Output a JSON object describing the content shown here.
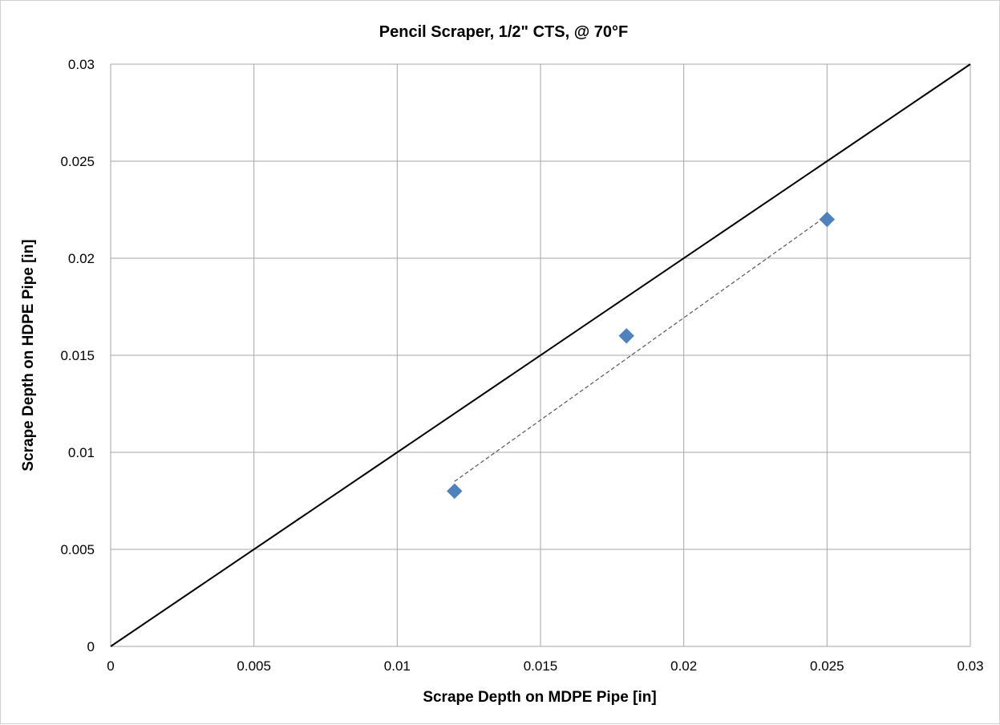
{
  "chart_data": {
    "type": "scatter",
    "title": "Pencil Scraper, 1/2\" CTS, @ 70°F",
    "xlabel": "Scrape Depth on MDPE Pipe [in]",
    "ylabel": "Scrape Depth on HDPE Pipe [in]",
    "xlim": [
      0,
      0.03
    ],
    "ylim": [
      0,
      0.03
    ],
    "x_ticks": [
      "0",
      "0.005",
      "0.01",
      "0.015",
      "0.02",
      "0.025",
      "0.03"
    ],
    "y_ticks": [
      "0",
      "0.005",
      "0.01",
      "0.015",
      "0.02",
      "0.025",
      "0.03"
    ],
    "grid": true,
    "legend": "none",
    "series": [
      {
        "points": [
          {
            "x": 0.012,
            "y": 0.008
          },
          {
            "x": 0.018,
            "y": 0.016
          },
          {
            "x": 0.025,
            "y": 0.022
          }
        ],
        "marker": "diamond",
        "color": "#4f81bd"
      }
    ],
    "trendline": {
      "style": "dashed",
      "color": "#555555",
      "from": {
        "x": 0.012,
        "y": 0.0085
      },
      "to": {
        "x": 0.025,
        "y": 0.0222
      }
    },
    "reference_line": {
      "style": "solid",
      "color": "#000000",
      "from": {
        "x": 0,
        "y": 0
      },
      "to": {
        "x": 0.03,
        "y": 0.03
      }
    }
  }
}
